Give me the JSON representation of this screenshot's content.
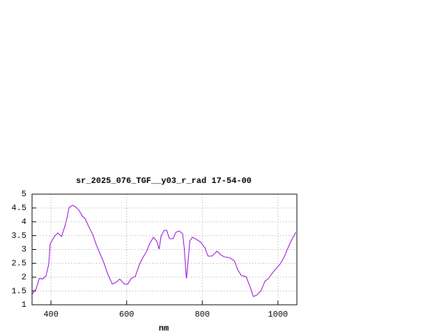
{
  "chart_data": {
    "type": "line",
    "title": "sr_2025_076_TGF__y03_r_rad 17-54-00",
    "x_label": "nm",
    "x": [
      350,
      361,
      369,
      378,
      387,
      394,
      398,
      409,
      418,
      428,
      437,
      442,
      448,
      457,
      464,
      474,
      483,
      490,
      500,
      511,
      520,
      538,
      551,
      562,
      571,
      582,
      594,
      603,
      612,
      623,
      634,
      643,
      652,
      662,
      671,
      680,
      686,
      691,
      699,
      706,
      713,
      723,
      730,
      739,
      748,
      752,
      758,
      761,
      767,
      774,
      785,
      796,
      807,
      815,
      826,
      839,
      848,
      857,
      874,
      885,
      894,
      903,
      916,
      925,
      935,
      944,
      955,
      966,
      975,
      986,
      995,
      1005,
      1016,
      1025,
      1036,
      1047
    ],
    "series": [
      {
        "color": "#9400d3",
        "values": [
          1.38,
          1.58,
          1.95,
          1.93,
          2.05,
          2.46,
          3.2,
          3.47,
          3.6,
          3.47,
          3.85,
          4.12,
          4.52,
          4.6,
          4.55,
          4.42,
          4.2,
          4.12,
          3.82,
          3.52,
          3.16,
          2.58,
          2.08,
          1.75,
          1.8,
          1.93,
          1.75,
          1.75,
          1.95,
          2.03,
          2.46,
          2.71,
          2.91,
          3.24,
          3.44,
          3.29,
          3.01,
          3.47,
          3.69,
          3.69,
          3.39,
          3.39,
          3.62,
          3.67,
          3.57,
          3.09,
          1.95,
          2.33,
          3.31,
          3.44,
          3.36,
          3.26,
          3.06,
          2.76,
          2.76,
          2.94,
          2.81,
          2.74,
          2.69,
          2.58,
          2.26,
          2.06,
          2.01,
          1.7,
          1.3,
          1.35,
          1.5,
          1.86,
          1.95,
          2.16,
          2.31,
          2.46,
          2.71,
          3.01,
          3.34,
          3.62
        ]
      }
    ],
    "xlim": [
      350,
      1050
    ],
    "xticks": [
      400,
      600,
      800,
      1000
    ],
    "ylim": [
      1,
      5
    ],
    "yticks": [
      1,
      1.5,
      2,
      2.5,
      3,
      3.5,
      4,
      4.5,
      5
    ],
    "grid": true
  }
}
